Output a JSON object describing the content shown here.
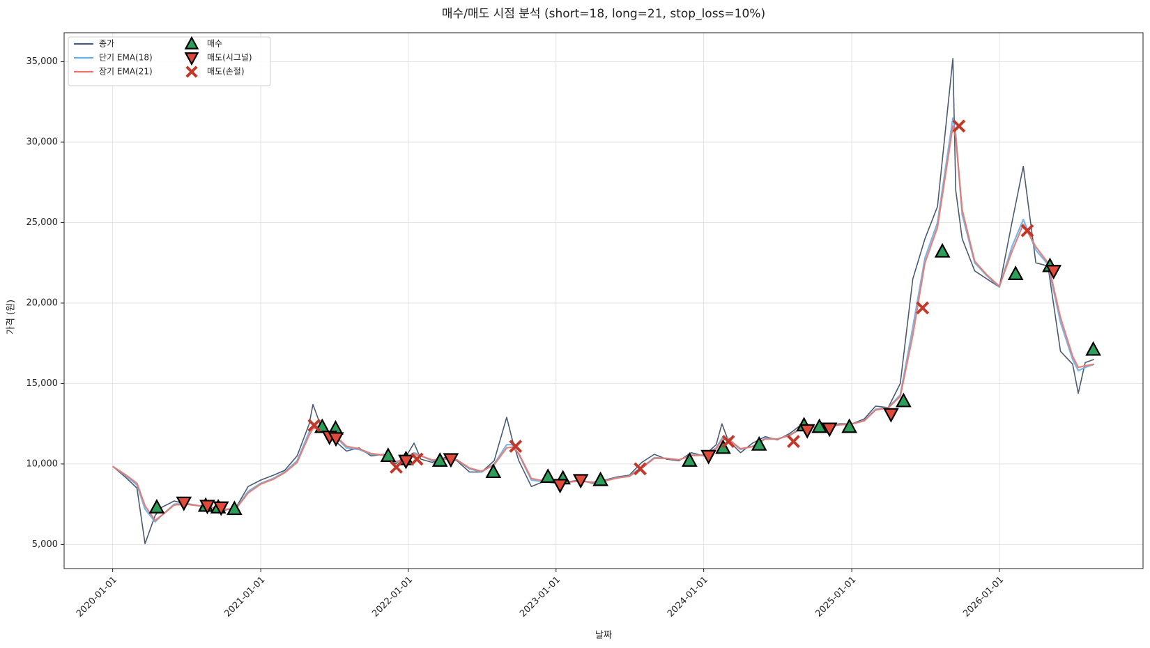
{
  "chart_data": {
    "type": "line",
    "title": "매수/매도 시점 분석 (short=18, long=21, stop_loss=10%)",
    "x_label": "날짜",
    "y_label": "가격 (원)",
    "grid": true,
    "legend": "upper left",
    "xlim": [
      "2019-09-03",
      "2026-12-22"
    ],
    "xticks": [
      "2020-01-01",
      "2021-01-01",
      "2022-01-01",
      "2023-01-01",
      "2024-01-01",
      "2025-01-01",
      "2026-01-01"
    ],
    "ylim": [
      3500,
      36800
    ],
    "yticks": [
      {
        "value": 5000,
        "label": "5,000"
      },
      {
        "value": 10000,
        "label": "10,000"
      },
      {
        "value": 15000,
        "label": "15,000"
      },
      {
        "value": 20000,
        "label": "20,000"
      },
      {
        "value": 25000,
        "label": "25,000"
      },
      {
        "value": 30000,
        "label": "30,000"
      },
      {
        "value": 35000,
        "label": "35,000"
      }
    ],
    "x": [
      "2020-01-01",
      "2020-02-01",
      "2020-03-01",
      "2020-03-21",
      "2020-04-15",
      "2020-05-01",
      "2020-06-01",
      "2020-07-01",
      "2020-08-01",
      "2020-09-01",
      "2020-10-01",
      "2020-11-01",
      "2020-12-01",
      "2021-01-01",
      "2021-02-01",
      "2021-03-01",
      "2021-04-01",
      "2021-05-01",
      "2021-05-10",
      "2021-06-01",
      "2021-07-01",
      "2021-08-01",
      "2021-09-01",
      "2021-10-01",
      "2021-11-01",
      "2021-12-01",
      "2022-01-01",
      "2022-01-15",
      "2022-02-01",
      "2022-03-01",
      "2022-04-01",
      "2022-05-01",
      "2022-06-01",
      "2022-07-01",
      "2022-08-01",
      "2022-09-01",
      "2022-09-15",
      "2022-10-01",
      "2022-11-01",
      "2022-12-01",
      "2023-01-01",
      "2023-02-01",
      "2023-03-01",
      "2023-04-01",
      "2023-05-01",
      "2023-06-01",
      "2023-07-01",
      "2023-08-01",
      "2023-09-01",
      "2023-10-01",
      "2023-11-01",
      "2023-12-01",
      "2024-01-01",
      "2024-02-01",
      "2024-02-15",
      "2024-03-01",
      "2024-04-01",
      "2024-05-01",
      "2024-06-01",
      "2024-07-01",
      "2024-08-01",
      "2024-09-01",
      "2024-10-01",
      "2024-11-01",
      "2024-12-01",
      "2025-01-01",
      "2025-02-01",
      "2025-03-01",
      "2025-04-01",
      "2025-05-01",
      "2025-06-01",
      "2025-07-01",
      "2025-08-01",
      "2025-09-08",
      "2025-09-15",
      "2025-10-01",
      "2025-11-01",
      "2025-12-01",
      "2026-01-01",
      "2026-02-01",
      "2026-03-01",
      "2026-04-01",
      "2026-05-01",
      "2026-06-01",
      "2026-07-01",
      "2026-07-15",
      "2026-08-01",
      "2026-08-23"
    ],
    "series": [
      {
        "name": "종가",
        "style": "line",
        "color": "#4a5a70",
        "width": 1.6,
        "values": [
          9850,
          9200,
          8500,
          5050,
          6800,
          7300,
          7700,
          7500,
          7400,
          7300,
          7100,
          7300,
          8600,
          9000,
          9300,
          9600,
          10500,
          12500,
          13700,
          12200,
          11500,
          10800,
          11000,
          10500,
          10600,
          10000,
          10700,
          11300,
          10300,
          10100,
          10400,
          10200,
          9500,
          9500,
          10200,
          12900,
          11500,
          10200,
          8600,
          8900,
          8800,
          8900,
          9000,
          8800,
          9000,
          9200,
          9300,
          10100,
          10600,
          10300,
          10200,
          10700,
          10500,
          11200,
          12500,
          11500,
          10700,
          11300,
          11700,
          11500,
          11900,
          12500,
          12300,
          12300,
          12500,
          12500,
          12800,
          13600,
          13500,
          15000,
          21500,
          24000,
          26000,
          35200,
          27000,
          24000,
          22000,
          21500,
          21000,
          25000,
          28500,
          22500,
          22300,
          17000,
          16200,
          14400,
          16300,
          16500
        ]
      },
      {
        "name": "단기 EMA(18)",
        "style": "line",
        "color": "#6aaee8",
        "width": 2.2,
        "values": [
          9850,
          9300,
          8700,
          7200,
          6400,
          6800,
          7500,
          7550,
          7400,
          7300,
          7150,
          7250,
          8300,
          8800,
          9100,
          9500,
          10200,
          12000,
          12400,
          12300,
          11800,
          11000,
          10900,
          10600,
          10550,
          10100,
          10400,
          10700,
          10500,
          10200,
          10300,
          10250,
          9700,
          9500,
          10000,
          11200,
          11200,
          10600,
          9000,
          8900,
          8850,
          8880,
          8950,
          8850,
          8950,
          9150,
          9250,
          9800,
          10400,
          10350,
          10250,
          10550,
          10550,
          11000,
          11600,
          11600,
          10900,
          11100,
          11600,
          11550,
          11800,
          12300,
          12300,
          12300,
          12450,
          12500,
          12700,
          13400,
          13500,
          14300,
          18500,
          22800,
          25000,
          31500,
          30500,
          25500,
          22500,
          21700,
          21000,
          23500,
          25200,
          23300,
          22400,
          18800,
          16500,
          15800,
          16000,
          16200
        ]
      },
      {
        "name": "장기 EMA(21)",
        "style": "line",
        "color": "#e8776a",
        "width": 2.2,
        "values": [
          9850,
          9350,
          8800,
          7400,
          6500,
          6800,
          7450,
          7500,
          7400,
          7320,
          7180,
          7230,
          8200,
          8750,
          9050,
          9450,
          10100,
          11800,
          12200,
          12250,
          11850,
          11100,
          10950,
          10650,
          10550,
          10150,
          10350,
          10600,
          10500,
          10250,
          10300,
          10250,
          9750,
          9550,
          9950,
          11000,
          11050,
          10650,
          9100,
          8950,
          8870,
          8880,
          8940,
          8860,
          8940,
          9130,
          9230,
          9750,
          10350,
          10350,
          10260,
          10520,
          10540,
          10950,
          11500,
          11550,
          10950,
          11080,
          11550,
          11550,
          11780,
          12250,
          12290,
          12300,
          12430,
          12480,
          12680,
          13350,
          13480,
          14200,
          18000,
          22500,
          24700,
          31000,
          30300,
          25800,
          22600,
          21750,
          21050,
          23200,
          24900,
          23500,
          22500,
          19100,
          16700,
          16000,
          16100,
          16200
        ]
      },
      {
        "name": "매수",
        "style": "marker",
        "marker": "triangle-up",
        "color": "#2ca05a",
        "x": [
          "2020-04-19",
          "2020-08-18",
          "2020-09-18",
          "2020-10-28",
          "2021-06-02",
          "2021-07-05",
          "2021-11-12",
          "2021-12-26",
          "2022-03-20",
          "2022-07-30",
          "2022-12-12",
          "2023-01-18",
          "2023-04-21",
          "2023-11-27",
          "2024-02-18",
          "2024-05-17",
          "2024-09-05",
          "2024-10-13",
          "2024-12-26",
          "2025-05-09",
          "2025-08-13",
          "2026-02-10",
          "2026-05-06",
          "2026-08-21"
        ],
        "values": [
          7300,
          7400,
          7300,
          7200,
          12300,
          12200,
          10500,
          10300,
          10200,
          9500,
          9200,
          9100,
          9000,
          10200,
          11000,
          11200,
          12400,
          12300,
          12300,
          13900,
          23200,
          21800,
          22300,
          17100
        ]
      },
      {
        "name": "매도(시그널)",
        "style": "marker",
        "marker": "triangle-down",
        "color": "#e04a3a",
        "x": [
          "2020-06-25",
          "2020-08-22",
          "2020-09-25",
          "2021-06-20",
          "2021-07-06",
          "2021-12-26",
          "2022-04-16",
          "2023-01-11",
          "2023-03-03",
          "2024-01-13",
          "2024-09-13",
          "2024-11-07",
          "2025-04-08",
          "2026-05-15"
        ],
        "values": [
          7600,
          7400,
          7300,
          11700,
          11600,
          10200,
          10300,
          8700,
          9000,
          10500,
          12100,
          12200,
          13100,
          22000
        ]
      },
      {
        "name": "매도(손절)",
        "style": "marker",
        "marker": "x",
        "color": "#c0392b",
        "x": [
          "2021-05-13",
          "2021-12-02",
          "2022-01-22",
          "2022-09-23",
          "2023-07-28",
          "2024-03-02",
          "2024-08-10",
          "2025-06-25",
          "2025-09-23",
          "2026-03-11"
        ],
        "values": [
          12400,
          9800,
          10300,
          11100,
          9700,
          11400,
          11400,
          19700,
          31000,
          24500
        ]
      }
    ]
  }
}
